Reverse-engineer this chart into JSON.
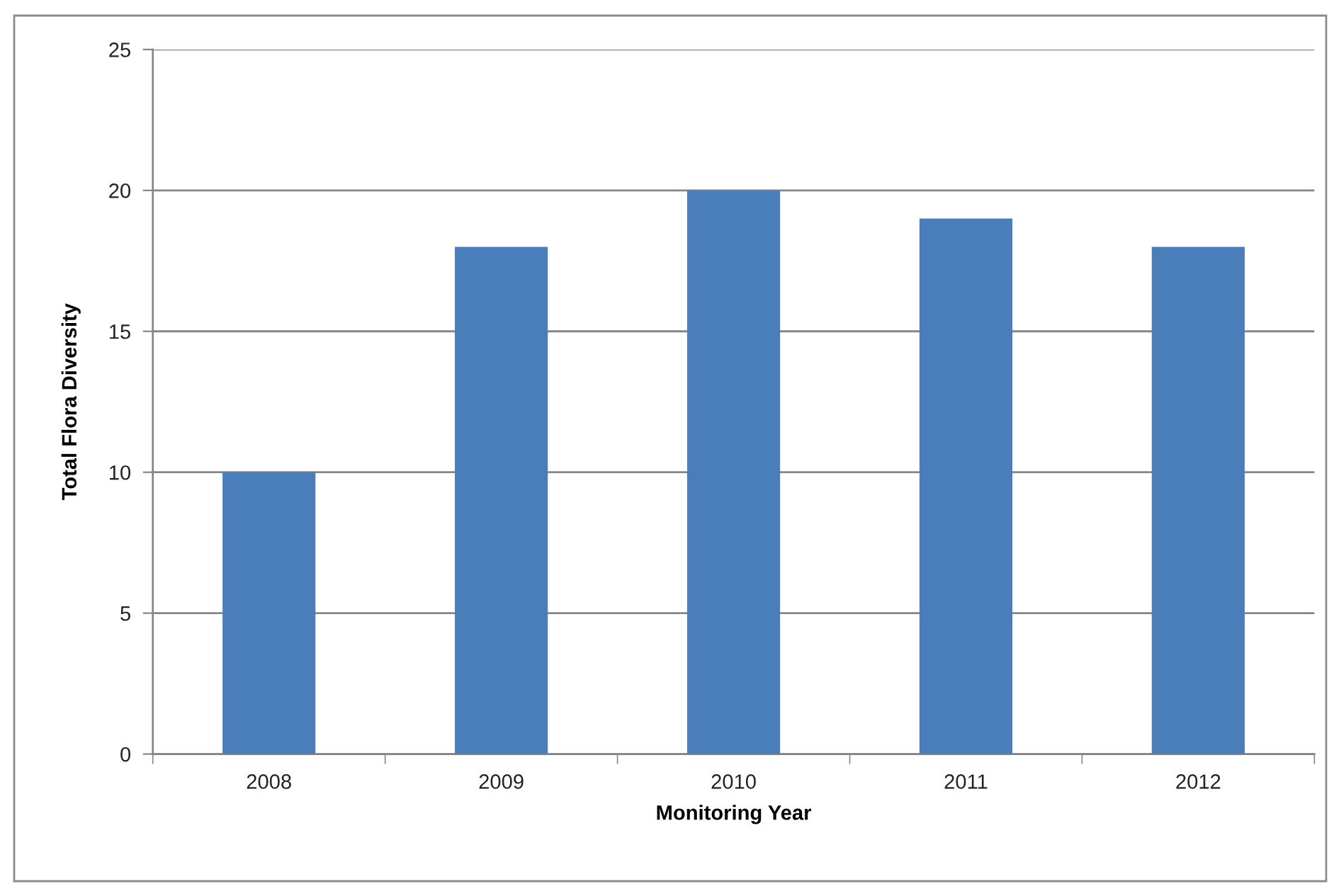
{
  "chart_data": {
    "type": "bar",
    "categories": [
      "2008",
      "2009",
      "2010",
      "2011",
      "2012"
    ],
    "values": [
      10,
      18,
      20,
      19,
      18
    ],
    "color": "#4a7ebb",
    "xlabel": "Monitoring Year",
    "ylabel": "Total Flora Diversity",
    "ylim": [
      0,
      25
    ],
    "yticks": [
      0,
      5,
      10,
      15,
      20,
      25
    ],
    "grid": "y"
  }
}
